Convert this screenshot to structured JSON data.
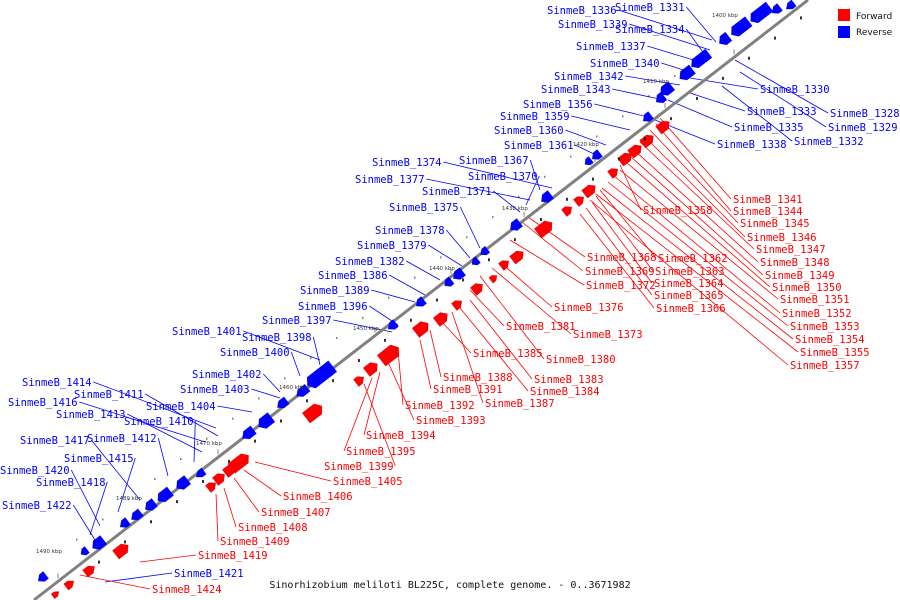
{
  "caption": "Sinorhizobium meliloti BL225C, complete genome. - 0..3671982",
  "legend": [
    {
      "label": "Forward",
      "color": "#ff0000"
    },
    {
      "label": "Reverse",
      "color": "#0000ff"
    }
  ],
  "colors": {
    "forward": "#ff0000",
    "reverse": "#0000ff",
    "axis": "#808080"
  },
  "ticks": [
    "1400 kbp",
    "1410 kbp",
    "1420 kbp",
    "1430 kbp",
    "1440 kbp",
    "1450 kbp",
    "1460 kbp",
    "1470 kbp",
    "1480 kbp",
    "1490 kbp"
  ],
  "reverse_genes": [
    "SinmeB_1336",
    "SinmeB_1331",
    "SinmeB_1339",
    "SinmeB_1334",
    "SinmeB_1337",
    "SinmeB_1340",
    "SinmeB_1342",
    "SinmeB_1343",
    "SinmeB_1356",
    "SinmeB_1359",
    "SinmeB_1360",
    "SinmeB_1361",
    "SinmeB_1374",
    "SinmeB_1367",
    "SinmeB_1377",
    "SinmeB_1370",
    "SinmeB_1371",
    "SinmeB_1375",
    "SinmeB_1378",
    "SinmeB_1379",
    "SinmeB_1382",
    "SinmeB_1386",
    "SinmeB_1389",
    "SinmeB_1396",
    "SinmeB_1397",
    "SinmeB_1401",
    "SinmeB_1398",
    "SinmeB_1400",
    "SinmeB_1402",
    "SinmeB_1414",
    "SinmeB_1403",
    "SinmeB_1411",
    "SinmeB_1416",
    "SinmeB_1404",
    "SinmeB_1413",
    "SinmeB_1410",
    "SinmeB_1412",
    "SinmeB_1417",
    "SinmeB_1415",
    "SinmeB_1420",
    "SinmeB_1418",
    "SinmeB_1422",
    "SinmeB_1421",
    "SinmeB_1330",
    "SinmeB_1333",
    "SinmeB_1328",
    "SinmeB_1335",
    "SinmeB_1329",
    "SinmeB_1338",
    "SinmeB_1332"
  ],
  "forward_genes": [
    "SinmeB_1341",
    "SinmeB_1358",
    "SinmeB_1344",
    "SinmeB_1345",
    "SinmeB_1346",
    "SinmeB_1347",
    "SinmeB_1348",
    "SinmeB_1368",
    "SinmeB_1362",
    "SinmeB_1349",
    "SinmeB_1369",
    "SinmeB_1363",
    "SinmeB_1350",
    "SinmeB_1372",
    "SinmeB_1364",
    "SinmeB_1351",
    "SinmeB_1365",
    "SinmeB_1352",
    "SinmeB_1376",
    "SinmeB_1366",
    "SinmeB_1353",
    "SinmeB_1381",
    "SinmeB_1373",
    "SinmeB_1354",
    "SinmeB_1355",
    "SinmeB_1385",
    "SinmeB_1380",
    "SinmeB_1357",
    "SinmeB_1383",
    "SinmeB_1388",
    "SinmeB_1384",
    "SinmeB_1391",
    "SinmeB_1387",
    "SinmeB_1392",
    "SinmeB_1393",
    "SinmeB_1394",
    "SinmeB_1395",
    "SinmeB_1399",
    "SinmeB_1405",
    "SinmeB_1406",
    "SinmeB_1407",
    "SinmeB_1408",
    "SinmeB_1409",
    "SinmeB_1419",
    "SinmeB_1424"
  ]
}
